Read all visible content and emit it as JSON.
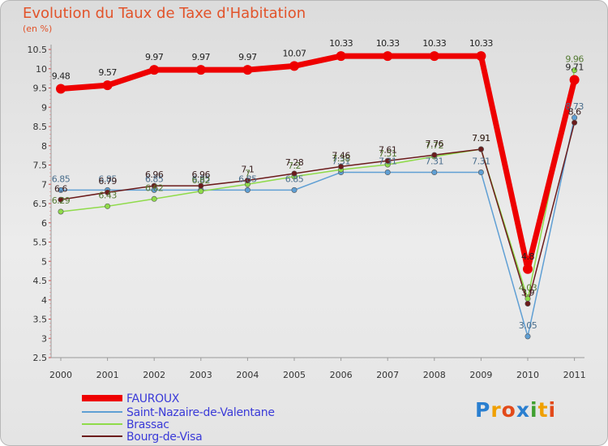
{
  "chart_data": {
    "type": "line",
    "title": "Evolution du Taux de Taxe d'Habitation",
    "subtitle": "(en %)",
    "xlabel": "",
    "ylabel": "(en %)",
    "categories": [
      "2000",
      "2001",
      "2002",
      "2003",
      "2004",
      "2005",
      "2006",
      "2007",
      "2008",
      "2009",
      "2010",
      "2011"
    ],
    "ylim": [
      2.5,
      10.5
    ],
    "yticks": [
      "2.5",
      "3",
      "3.5",
      "4",
      "4.5",
      "5",
      "5.5",
      "6",
      "6.5",
      "7",
      "7.5",
      "8",
      "8.5",
      "9",
      "9.5",
      "10",
      "10.5"
    ],
    "grid": false,
    "series": [
      {
        "name": "FAUROUX",
        "color": "#ee0000",
        "values": [
          9.48,
          9.57,
          9.97,
          9.97,
          9.97,
          10.07,
          10.33,
          10.33,
          10.33,
          10.33,
          4.8,
          9.71
        ],
        "labels": [
          "9.48",
          "9.57",
          "9.97",
          "9.97",
          "9.97",
          "10.07",
          "10.33",
          "10.33",
          "10.33",
          "10.33",
          "4.8",
          "9.71"
        ]
      },
      {
        "name": "Saint-Nazaire-de-Valentane",
        "color": "#5f9fd4",
        "values": [
          6.85,
          6.85,
          6.85,
          6.85,
          6.85,
          6.85,
          7.31,
          7.31,
          7.31,
          7.31,
          3.05,
          8.73
        ],
        "labels": [
          "6.85",
          "6.85",
          "6.85",
          "6.85",
          "6.85",
          "6.85",
          "7.31",
          "7.31",
          "7.31",
          "7.31",
          "3.05",
          "8.73"
        ]
      },
      {
        "name": "Brassac",
        "color": "#8fdb4a",
        "values": [
          6.29,
          6.43,
          6.62,
          6.82,
          7.0,
          7.2,
          7.38,
          7.51,
          7.72,
          7.91,
          4.03,
          9.96
        ],
        "labels": [
          "6.29",
          "6.43",
          "6.62",
          "6.82",
          "7",
          "7.2",
          "7.38",
          "7.51",
          "7.72",
          "7.91",
          "4.03",
          "9.96"
        ]
      },
      {
        "name": "Bourg-de-Visa",
        "color": "#6b1b1b",
        "values": [
          6.6,
          6.79,
          6.96,
          6.96,
          7.1,
          7.28,
          7.46,
          7.61,
          7.76,
          7.91,
          3.9,
          8.6
        ],
        "labels": [
          "6.6",
          "6.79",
          "6.96",
          "6.96",
          "7.1",
          "7.28",
          "7.46",
          "7.61",
          "7.76",
          "7.91",
          "3.9",
          "8.6"
        ]
      }
    ]
  },
  "logo": {
    "text": "Proxiti"
  }
}
